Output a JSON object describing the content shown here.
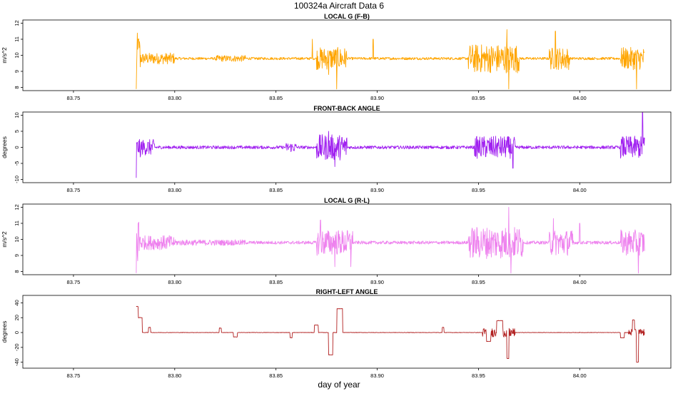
{
  "figure": {
    "title": "100324a    Aircraft Data 6",
    "xlabel": "day of year"
  },
  "colors": {
    "panel1": "#FFA500",
    "panel2": "#A020F0",
    "panel3": "#EE82EE",
    "panel4": "#B22222"
  },
  "chart_data": [
    {
      "type": "line",
      "title": "LOCAL G (F-B)",
      "xlabel": "",
      "ylabel": "m/s^2",
      "xlim": [
        83.725,
        84.045
      ],
      "ylim": [
        7.8,
        12.2
      ],
      "x_ticks": [
        "83.75",
        "83.80",
        "83.85",
        "83.90",
        "83.95",
        "84.00"
      ],
      "y_ticks": [
        "8",
        "9",
        "10",
        "11",
        "12"
      ],
      "grid": false,
      "series": [
        {
          "color": "#FFA500",
          "x_range": [
            83.781,
            84.032
          ],
          "baseline": 9.8,
          "noise": 0.08,
          "segments": [
            {
              "x": [
                83.781,
                83.783
              ],
              "amp": 1.6
            },
            {
              "x": [
                83.783,
                83.8
              ],
              "amp": 0.35
            },
            {
              "x": [
                83.82,
                83.835
              ],
              "amp": 0.2
            },
            {
              "x": [
                83.87,
                83.885
              ],
              "amp": 0.7
            },
            {
              "x": [
                83.945,
                83.97
              ],
              "amp": 0.9
            },
            {
              "x": [
                83.985,
                83.995
              ],
              "amp": 0.7
            },
            {
              "x": [
                84.02,
                84.032
              ],
              "amp": 0.7
            }
          ],
          "spikes": [
            {
              "x": 83.781,
              "y": 7.9
            },
            {
              "x": 83.782,
              "y": 11.0
            },
            {
              "x": 83.868,
              "y": 11.0
            },
            {
              "x": 83.876,
              "y": 8.8
            },
            {
              "x": 83.88,
              "y": 7.9
            },
            {
              "x": 83.898,
              "y": 11.0
            },
            {
              "x": 83.964,
              "y": 11.6
            },
            {
              "x": 83.965,
              "y": 7.9
            },
            {
              "x": 83.988,
              "y": 11.5
            },
            {
              "x": 84.028,
              "y": 7.9
            }
          ]
        }
      ]
    },
    {
      "type": "line",
      "title": "FRONT-BACK ANGLE",
      "xlabel": "",
      "ylabel": "degrees",
      "xlim": [
        83.725,
        84.045
      ],
      "ylim": [
        -11,
        11
      ],
      "x_ticks": [
        "83.75",
        "83.80",
        "83.85",
        "83.90",
        "83.95",
        "84.00"
      ],
      "y_ticks": [
        "-10",
        "-5",
        "0",
        "5",
        "10"
      ],
      "grid": false,
      "series": [
        {
          "color": "#A020F0",
          "x_range": [
            83.781,
            84.032
          ],
          "baseline": 0,
          "noise": 0.5,
          "segments": [
            {
              "x": [
                83.781,
                83.79
              ],
              "amp": 2.5
            },
            {
              "x": [
                83.855,
                83.86
              ],
              "amp": 1.5
            },
            {
              "x": [
                83.87,
                83.885
              ],
              "amp": 4.0
            },
            {
              "x": [
                83.948,
                83.968
              ],
              "amp": 3.5
            },
            {
              "x": [
                84.02,
                84.032
              ],
              "amp": 3.5
            }
          ],
          "spikes": [
            {
              "x": 83.781,
              "y": -9.5
            },
            {
              "x": 83.783,
              "y": -3.0
            },
            {
              "x": 83.876,
              "y": 5.0
            },
            {
              "x": 83.879,
              "y": -6.0
            },
            {
              "x": 83.967,
              "y": -6.5
            },
            {
              "x": 84.031,
              "y": 11.0
            },
            {
              "x": 84.032,
              "y": 3.0
            }
          ]
        }
      ]
    },
    {
      "type": "line",
      "title": "LOCAL G (R-L)",
      "xlabel": "",
      "ylabel": "m/s^2",
      "xlim": [
        83.725,
        84.045
      ],
      "ylim": [
        7.8,
        12.2
      ],
      "x_ticks": [
        "83.75",
        "83.80",
        "83.85",
        "83.90",
        "83.95",
        "84.00"
      ],
      "y_ticks": [
        "8",
        "9",
        "10",
        "11",
        "12"
      ],
      "grid": false,
      "series": [
        {
          "color": "#EE82EE",
          "x_range": [
            83.781,
            84.032
          ],
          "baseline": 9.8,
          "noise": 0.1,
          "segments": [
            {
              "x": [
                83.781,
                83.783
              ],
              "amp": 1.6
            },
            {
              "x": [
                83.783,
                83.8
              ],
              "amp": 0.45
            },
            {
              "x": [
                83.8,
                83.835
              ],
              "amp": 0.18
            },
            {
              "x": [
                83.87,
                83.888
              ],
              "amp": 0.8
            },
            {
              "x": [
                83.945,
                83.972
              ],
              "amp": 1.0
            },
            {
              "x": [
                83.985,
                83.997
              ],
              "amp": 0.8
            },
            {
              "x": [
                84.02,
                84.032
              ],
              "amp": 0.8
            }
          ],
          "spikes": [
            {
              "x": 83.781,
              "y": 7.9
            },
            {
              "x": 83.782,
              "y": 11.0
            },
            {
              "x": 83.872,
              "y": 11.2
            },
            {
              "x": 83.879,
              "y": 8.3
            },
            {
              "x": 83.965,
              "y": 12.0
            },
            {
              "x": 83.966,
              "y": 7.9
            },
            {
              "x": 83.987,
              "y": 11.3
            },
            {
              "x": 84.029,
              "y": 7.9
            },
            {
              "x": 84.0,
              "y": 11.0
            },
            {
              "x": 83.887,
              "y": 8.3
            }
          ]
        }
      ]
    },
    {
      "type": "line",
      "title": "RIGHT-LEFT ANGLE",
      "xlabel": "day of year",
      "ylabel": "degrees",
      "xlim": [
        83.725,
        84.045
      ],
      "ylim": [
        -48,
        50
      ],
      "x_ticks": [
        "83.75",
        "83.80",
        "83.85",
        "83.90",
        "83.95",
        "84.00"
      ],
      "y_ticks": [
        "-40",
        "-20",
        "0",
        "20",
        "40"
      ],
      "grid": false,
      "series": [
        {
          "color": "#B22222",
          "x_range": [
            83.781,
            84.032
          ],
          "baseline": 0,
          "noise": 0.3,
          "segments": [
            {
              "x": [
                83.952,
                83.968
              ],
              "amp": 6.0
            },
            {
              "x": [
                84.024,
                84.032
              ],
              "amp": 5.0
            }
          ],
          "steps": [
            {
              "x": [
                83.781,
                83.782
              ],
              "y": 35
            },
            {
              "x": [
                83.782,
                83.784
              ],
              "y": 20
            },
            {
              "x": [
                83.787,
                83.788
              ],
              "y": 7
            },
            {
              "x": [
                83.822,
                83.823
              ],
              "y": 6
            },
            {
              "x": [
                83.829,
                83.831
              ],
              "y": -6
            },
            {
              "x": [
                83.857,
                83.858
              ],
              "y": -7
            },
            {
              "x": [
                83.869,
                83.871
              ],
              "y": 10
            },
            {
              "x": [
                83.876,
                83.878
              ],
              "y": -30
            },
            {
              "x": [
                83.88,
                83.883
              ],
              "y": 32
            },
            {
              "x": [
                83.932,
                83.933
              ],
              "y": 7
            },
            {
              "x": [
                83.954,
                83.956
              ],
              "y": -12
            },
            {
              "x": [
                83.959,
                83.962
              ],
              "y": 16
            },
            {
              "x": [
                83.964,
                83.965
              ],
              "y": -35
            },
            {
              "x": [
                84.02,
                84.022
              ],
              "y": -7
            },
            {
              "x": [
                84.026,
                84.027
              ],
              "y": 17
            },
            {
              "x": [
                84.028,
                84.029
              ],
              "y": -40
            }
          ]
        }
      ]
    }
  ]
}
